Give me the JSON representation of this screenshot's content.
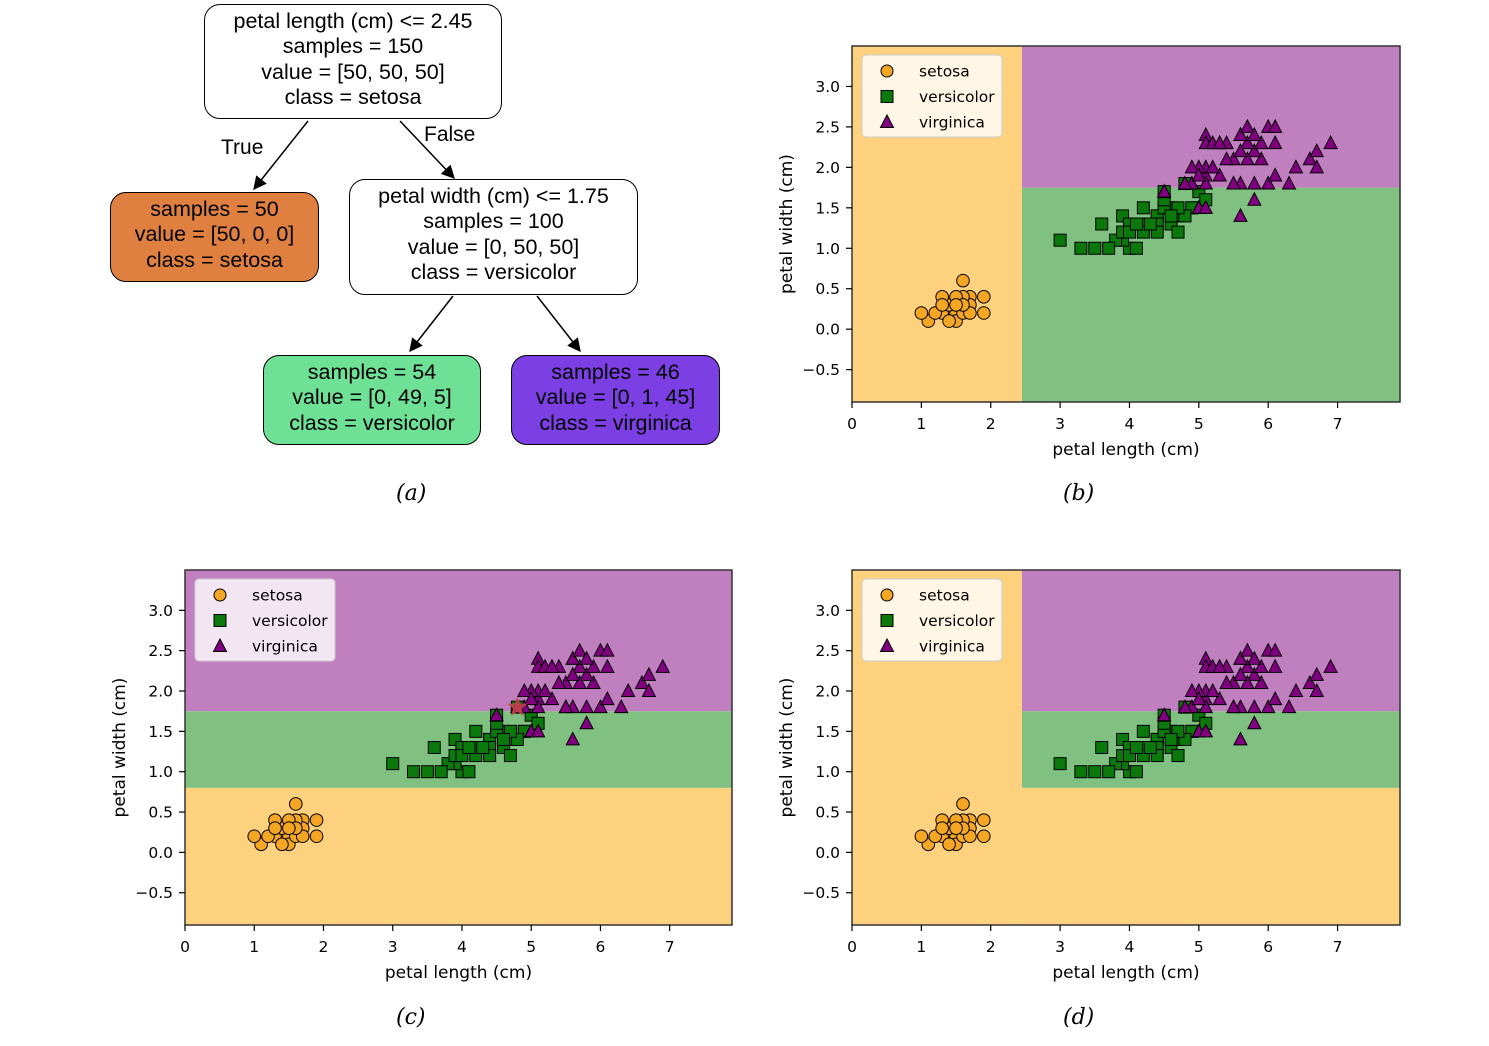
{
  "tree": {
    "root": {
      "lines": [
        "petal length (cm) <= 2.45",
        "samples = 150",
        "value = [50, 50, 50]",
        "class = setosa"
      ],
      "fill": "#ffffff"
    },
    "left_leaf": {
      "lines": [
        "samples = 50",
        "value = [50, 0, 0]",
        "class = setosa"
      ],
      "fill": "#e08040"
    },
    "right_node": {
      "lines": [
        "petal width (cm) <= 1.75",
        "samples = 100",
        "value = [0, 50, 50]",
        "class = versicolor"
      ],
      "fill": "#ffffff"
    },
    "leaf_versicolor": {
      "lines": [
        "samples = 54",
        "value = [0, 49, 5]",
        "class = versicolor"
      ],
      "fill": "#6ee196"
    },
    "leaf_virginica": {
      "lines": [
        "samples = 46",
        "value = [0, 1, 45]",
        "class = virginica"
      ],
      "fill": "#7b3fe4"
    },
    "edge_true": "True",
    "edge_false": "False"
  },
  "captions": {
    "a": "(a)",
    "b": "(b)",
    "c": "(c)",
    "d": "(d)"
  },
  "legend": {
    "setosa": "setosa",
    "versicolor": "versicolor",
    "virginica": "virginica"
  },
  "colors": {
    "setosa": "#f5a623",
    "versicolor": "#0a780a",
    "virginica": "#800080",
    "region_setosa": "#fdd17e",
    "region_versicolor": "#80c080",
    "region_virginica": "#c080c0",
    "star": "#c84848"
  },
  "chart_data": [
    {
      "type": "scatter",
      "panel": "b",
      "xlabel": "petal length (cm)",
      "ylabel": "petal width (cm)",
      "xlim": [
        0,
        7.9
      ],
      "ylim": [
        -0.9,
        3.5
      ],
      "xticks": [
        "0",
        "1",
        "2",
        "3",
        "4",
        "5",
        "6",
        "7"
      ],
      "yticks": [
        "−0.5",
        "0.0",
        "0.5",
        "1.0",
        "1.5",
        "2.0",
        "2.5",
        "3.0"
      ],
      "regions": [
        {
          "class": "setosa",
          "x": [
            0,
            2.45
          ],
          "y": [
            -0.9,
            3.5
          ]
        },
        {
          "class": "versicolor",
          "x": [
            2.45,
            7.9
          ],
          "y": [
            -0.9,
            1.75
          ]
        },
        {
          "class": "virginica",
          "x": [
            2.45,
            7.9
          ],
          "y": [
            1.75,
            3.5
          ]
        }
      ],
      "legend_position": "top-left"
    },
    {
      "type": "scatter",
      "panel": "c",
      "xlabel": "petal length (cm)",
      "ylabel": "petal width (cm)",
      "xlim": [
        0,
        7.9
      ],
      "ylim": [
        -0.9,
        3.5
      ],
      "xticks": [
        "0",
        "1",
        "2",
        "3",
        "4",
        "5",
        "6",
        "7"
      ],
      "yticks": [
        "−0.5",
        "0.0",
        "0.5",
        "1.0",
        "1.5",
        "2.0",
        "2.5",
        "3.0"
      ],
      "regions": [
        {
          "class": "setosa",
          "x": [
            0,
            7.9
          ],
          "y": [
            -0.9,
            0.8
          ]
        },
        {
          "class": "versicolor",
          "x": [
            0,
            7.9
          ],
          "y": [
            0.8,
            1.75
          ]
        },
        {
          "class": "virginica",
          "x": [
            0,
            7.9
          ],
          "y": [
            1.75,
            3.5
          ]
        }
      ],
      "star": {
        "x": 4.8,
        "y": 1.8
      },
      "legend_position": "top-left"
    },
    {
      "type": "scatter",
      "panel": "d",
      "xlabel": "petal length (cm)",
      "ylabel": "petal width (cm)",
      "xlim": [
        0,
        7.9
      ],
      "ylim": [
        -0.9,
        3.5
      ],
      "xticks": [
        "0",
        "1",
        "2",
        "3",
        "4",
        "5",
        "6",
        "7"
      ],
      "yticks": [
        "−0.5",
        "0.0",
        "0.5",
        "1.0",
        "1.5",
        "2.0",
        "2.5",
        "3.0"
      ],
      "regions": [
        {
          "class": "setosa",
          "x": [
            0,
            2.45
          ],
          "y": [
            -0.9,
            3.5
          ]
        },
        {
          "class": "setosa",
          "x": [
            2.45,
            7.9
          ],
          "y": [
            -0.9,
            0.8
          ]
        },
        {
          "class": "versicolor",
          "x": [
            2.45,
            7.9
          ],
          "y": [
            0.8,
            1.75
          ]
        },
        {
          "class": "virginica",
          "x": [
            2.45,
            7.9
          ],
          "y": [
            1.75,
            3.5
          ]
        }
      ],
      "legend_position": "top-left"
    }
  ],
  "points": {
    "setosa": [
      [
        1.4,
        0.2
      ],
      [
        1.3,
        0.2
      ],
      [
        1.5,
        0.2
      ],
      [
        1.7,
        0.4
      ],
      [
        1.4,
        0.3
      ],
      [
        1.5,
        0.1
      ],
      [
        1.6,
        0.2
      ],
      [
        1.1,
        0.1
      ],
      [
        1.2,
        0.2
      ],
      [
        1.3,
        0.4
      ],
      [
        1.7,
        0.3
      ],
      [
        1.0,
        0.2
      ],
      [
        1.9,
        0.2
      ],
      [
        1.6,
        0.4
      ],
      [
        1.6,
        0.6
      ],
      [
        1.9,
        0.4
      ],
      [
        1.5,
        0.4
      ],
      [
        1.4,
        0.1
      ],
      [
        1.7,
        0.2
      ],
      [
        1.6,
        0.3
      ],
      [
        1.3,
        0.3
      ],
      [
        1.5,
        0.3
      ]
    ],
    "versicolor": [
      [
        4.7,
        1.4
      ],
      [
        4.5,
        1.5
      ],
      [
        4.9,
        1.5
      ],
      [
        4.0,
        1.3
      ],
      [
        4.6,
        1.5
      ],
      [
        3.3,
        1.0
      ],
      [
        4.6,
        1.3
      ],
      [
        3.9,
        1.4
      ],
      [
        3.5,
        1.0
      ],
      [
        4.2,
        1.5
      ],
      [
        4.0,
        1.0
      ],
      [
        4.7,
        1.4
      ],
      [
        3.6,
        1.3
      ],
      [
        4.4,
        1.4
      ],
      [
        4.5,
        1.5
      ],
      [
        4.1,
        1.0
      ],
      [
        4.5,
        1.5
      ],
      [
        3.9,
        1.1
      ],
      [
        4.8,
        1.8
      ],
      [
        4.0,
        1.3
      ],
      [
        4.9,
        1.5
      ],
      [
        4.7,
        1.2
      ],
      [
        4.3,
        1.3
      ],
      [
        4.4,
        1.4
      ],
      [
        4.8,
        1.4
      ],
      [
        5.0,
        1.7
      ],
      [
        4.5,
        1.5
      ],
      [
        3.8,
        1.1
      ],
      [
        3.7,
        1.0
      ],
      [
        3.9,
        1.2
      ],
      [
        5.1,
        1.6
      ],
      [
        4.5,
        1.6
      ],
      [
        4.7,
        1.5
      ],
      [
        4.4,
        1.3
      ],
      [
        4.1,
        1.3
      ],
      [
        4.0,
        1.3
      ],
      [
        4.4,
        1.2
      ],
      [
        4.6,
        1.4
      ],
      [
        4.0,
        1.2
      ],
      [
        3.0,
        1.1
      ],
      [
        4.2,
        1.3
      ],
      [
        4.2,
        1.2
      ],
      [
        4.3,
        1.3
      ],
      [
        4.1,
        1.3
      ],
      [
        4.5,
        1.7
      ]
    ],
    "virginica": [
      [
        6.0,
        2.5
      ],
      [
        5.1,
        1.9
      ],
      [
        5.9,
        2.1
      ],
      [
        5.6,
        1.8
      ],
      [
        5.8,
        2.2
      ],
      [
        6.6,
        2.1
      ],
      [
        6.3,
        1.8
      ],
      [
        6.1,
        2.5
      ],
      [
        5.1,
        2.0
      ],
      [
        5.3,
        1.9
      ],
      [
        5.5,
        2.1
      ],
      [
        5.0,
        2.0
      ],
      [
        5.1,
        2.4
      ],
      [
        5.3,
        2.3
      ],
      [
        5.5,
        1.8
      ],
      [
        6.7,
        2.2
      ],
      [
        6.9,
        2.3
      ],
      [
        5.0,
        1.5
      ],
      [
        5.7,
        2.3
      ],
      [
        4.9,
        2.0
      ],
      [
        6.7,
        2.0
      ],
      [
        4.9,
        1.8
      ],
      [
        5.7,
        2.1
      ],
      [
        6.0,
        1.8
      ],
      [
        4.8,
        1.8
      ],
      [
        5.8,
        1.6
      ],
      [
        6.4,
        2.0
      ],
      [
        5.6,
        2.2
      ],
      [
        5.1,
        1.5
      ],
      [
        5.6,
        1.4
      ],
      [
        6.1,
        2.3
      ],
      [
        5.6,
        2.4
      ],
      [
        5.5,
        1.8
      ],
      [
        5.4,
        2.1
      ],
      [
        5.6,
        2.4
      ],
      [
        5.1,
        2.3
      ],
      [
        5.9,
        2.3
      ],
      [
        5.7,
        2.5
      ],
      [
        5.2,
        2.3
      ],
      [
        5.2,
        2.0
      ],
      [
        5.4,
        2.3
      ],
      [
        5.1,
        1.8
      ],
      [
        4.5,
        1.7
      ],
      [
        5.3,
        2.3
      ],
      [
        5.8,
        1.8
      ],
      [
        6.1,
        1.9
      ],
      [
        5.0,
        1.9
      ],
      [
        5.8,
        2.4
      ]
    ]
  }
}
